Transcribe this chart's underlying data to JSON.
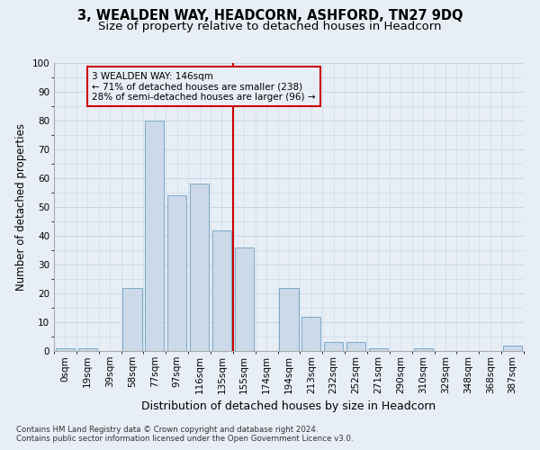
{
  "title": "3, WEALDEN WAY, HEADCORN, ASHFORD, TN27 9DQ",
  "subtitle": "Size of property relative to detached houses in Headcorn",
  "xlabel": "Distribution of detached houses by size in Headcorn",
  "ylabel": "Number of detached properties",
  "footnote1": "Contains HM Land Registry data © Crown copyright and database right 2024.",
  "footnote2": "Contains public sector information licensed under the Open Government Licence v3.0.",
  "bar_labels": [
    "0sqm",
    "19sqm",
    "39sqm",
    "58sqm",
    "77sqm",
    "97sqm",
    "116sqm",
    "135sqm",
    "155sqm",
    "174sqm",
    "194sqm",
    "213sqm",
    "232sqm",
    "252sqm",
    "271sqm",
    "290sqm",
    "310sqm",
    "329sqm",
    "348sqm",
    "368sqm",
    "387sqm"
  ],
  "bar_values": [
    1,
    1,
    0,
    22,
    80,
    54,
    58,
    42,
    36,
    0,
    22,
    12,
    3,
    3,
    1,
    0,
    1,
    0,
    0,
    0,
    2
  ],
  "bar_color": "#ccd9e8",
  "bar_edge_color": "#7aaac8",
  "grid_color": "#c8d4e4",
  "background_color": "#e8eef6",
  "vline_x_idx": 8,
  "vline_color": "#cc0000",
  "annotation_line1": "3 WEALDEN WAY: 146sqm",
  "annotation_line2": "← 71% of detached houses are smaller (238)",
  "annotation_line3": "28% of semi-detached houses are larger (96) →",
  "annotation_box_color": "#cc0000",
  "ylim": [
    0,
    100
  ],
  "yticks": [
    0,
    10,
    20,
    30,
    40,
    50,
    60,
    70,
    80,
    90,
    100
  ],
  "title_fontsize": 10.5,
  "subtitle_fontsize": 9.5,
  "xlabel_fontsize": 9,
  "ylabel_fontsize": 8.5,
  "tick_fontsize": 7.5,
  "annotation_fontsize": 7.5
}
